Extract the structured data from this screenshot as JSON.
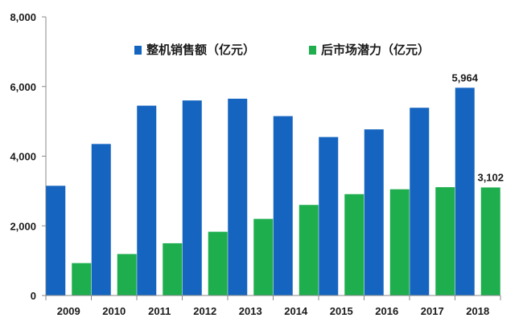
{
  "chart_data": {
    "type": "bar",
    "categories": [
      "2009",
      "2010",
      "2011",
      "2012",
      "2013",
      "2014",
      "2015",
      "2016",
      "2017",
      "2018"
    ],
    "series": [
      {
        "name": "整机销售额（亿元）",
        "color": "#1565C0",
        "values": [
          3150,
          4350,
          5450,
          5600,
          5650,
          5150,
          4550,
          4770,
          5390,
          5964
        ]
      },
      {
        "name": "后市场潜力（亿元）",
        "color": "#1EAE4E",
        "values": [
          930,
          1190,
          1500,
          1830,
          2200,
          2600,
          2910,
          3050,
          3110,
          3102
        ]
      }
    ],
    "data_labels": [
      {
        "series": 0,
        "category": "2018",
        "text": "5,964"
      },
      {
        "series": 1,
        "category": "2018",
        "text": "3,102"
      }
    ],
    "ylim": [
      0,
      8000
    ],
    "yticks": [
      {
        "value": 0,
        "label": "0"
      },
      {
        "value": 2000,
        "label": "2,000"
      },
      {
        "value": 4000,
        "label": "4,000"
      },
      {
        "value": 6000,
        "label": "6,000"
      },
      {
        "value": 8000,
        "label": "8,000"
      }
    ],
    "grid": false,
    "legend_position": "top"
  }
}
